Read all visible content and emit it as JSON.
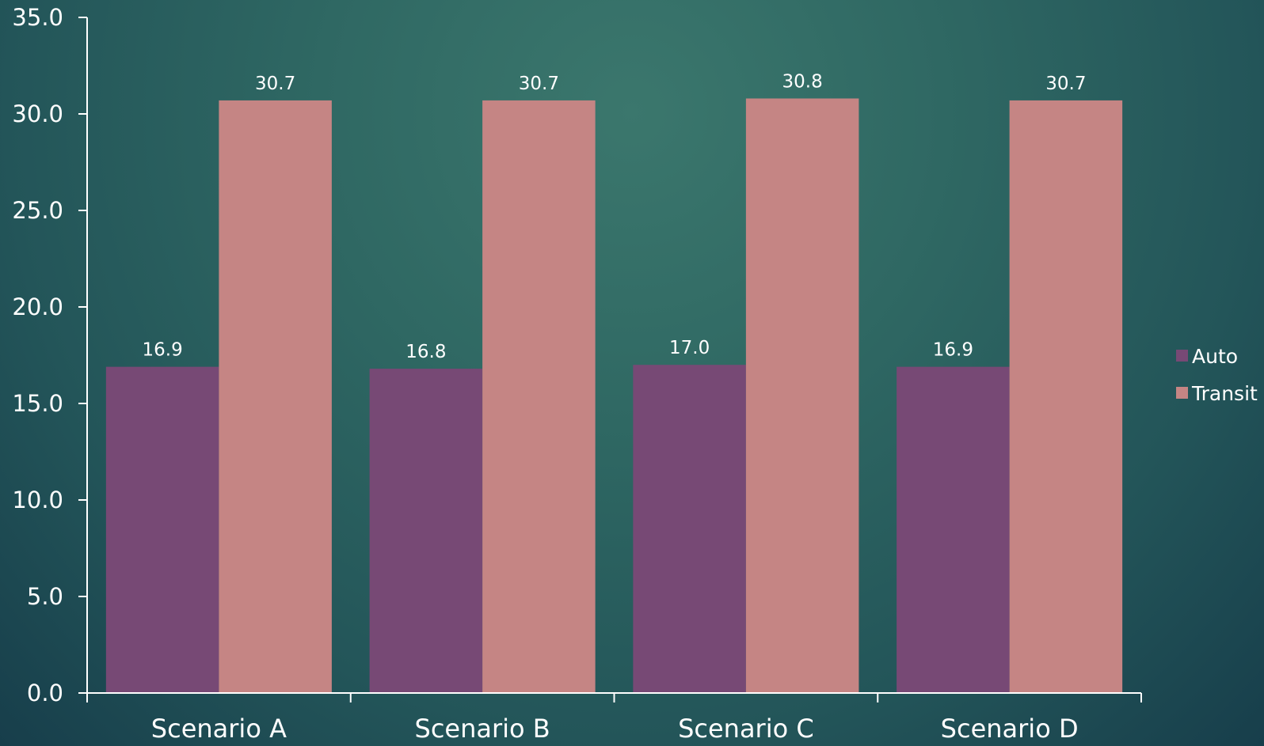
{
  "chart_data": {
    "type": "bar",
    "categories": [
      "Scenario A",
      "Scenario B",
      "Scenario C",
      "Scenario D"
    ],
    "series": [
      {
        "name": "Auto",
        "values": [
          16.9,
          16.8,
          17.0,
          16.9
        ],
        "labels": [
          "16.9",
          "16.8",
          "17.0",
          "16.9"
        ],
        "color": "#774975"
      },
      {
        "name": "Transit",
        "values": [
          30.7,
          30.7,
          30.8,
          30.7
        ],
        "labels": [
          "30.7",
          "30.7",
          "30.8",
          "30.7"
        ],
        "color": "#c58584"
      }
    ],
    "ylim": [
      0,
      35
    ],
    "yticks": [
      0,
      5,
      10,
      15,
      20,
      25,
      30,
      35
    ],
    "ytick_labels": [
      "0.0",
      "5.0",
      "10.0",
      "15.0",
      "20.0",
      "25.0",
      "30.0",
      "35.0"
    ],
    "title": "",
    "xlabel": "",
    "ylabel": "",
    "grid": false,
    "legend": "right"
  }
}
